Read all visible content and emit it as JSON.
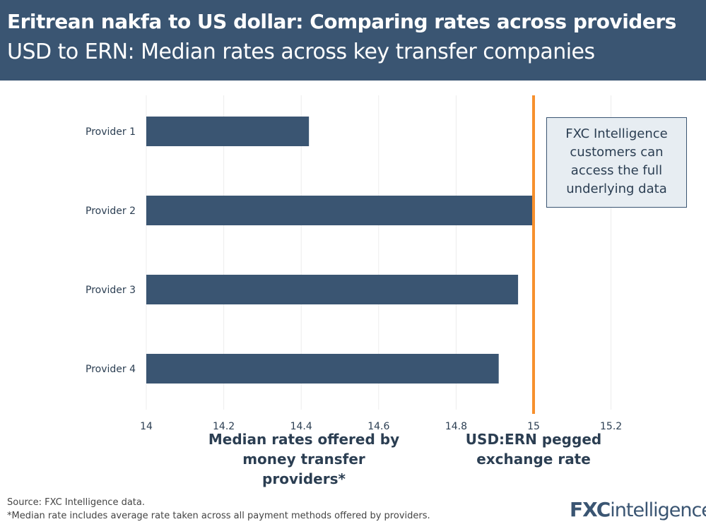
{
  "header": {
    "title": "Eritrean nakfa to US dollar: Comparing rates across providers",
    "subtitle": "USD to ERN: Median rates across key transfer companies"
  },
  "chart_data": {
    "type": "bar",
    "orientation": "horizontal",
    "categories": [
      "Provider 1",
      "Provider 2",
      "Provider 3",
      "Provider 4"
    ],
    "values": [
      14.42,
      15.0,
      14.96,
      14.91
    ],
    "xlim": [
      14,
      15.28
    ],
    "xticks": [
      "14",
      "14.2",
      "14.4",
      "14.6",
      "14.8",
      "15",
      "15.2"
    ],
    "xlabel": "Median rates offered by money transfer providers*",
    "reference_line": {
      "value": 15,
      "label": "USD:ERN pegged exchange rate",
      "color": "#f7902d"
    },
    "bar_color": "#3a5572",
    "grid": true
  },
  "callout": "FXC Intelligence customers can access the full underlying data",
  "footer": {
    "source": "Source: FXC Intelligence data.",
    "note": "*Median rate includes average rate taken across all payment methods offered by providers."
  },
  "logo": {
    "text1": "FXC",
    "text2": "intelligence"
  }
}
